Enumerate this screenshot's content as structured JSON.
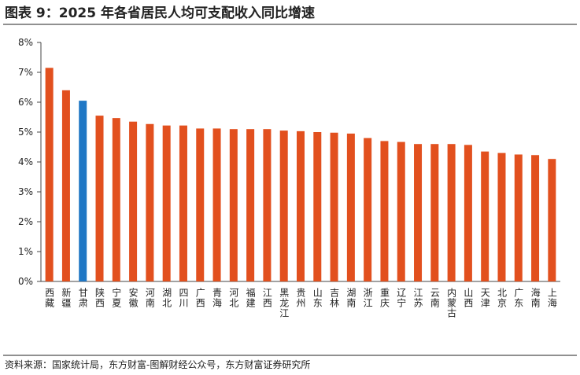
{
  "chart_data": {
    "type": "bar",
    "title": "图表 9：2025 年各省居民人均可支配收入同比增速",
    "source": "资料来源：国家统计局，东方财富-图解财经公众号，东方财富证券研究所",
    "categories": [
      "西藏",
      "新疆",
      "甘肃",
      "陕西",
      "宁夏",
      "安徽",
      "河南",
      "湖北",
      "四川",
      "广西",
      "青海",
      "河北",
      "福建",
      "江西",
      "黑龙江",
      "贵州",
      "山东",
      "吉林",
      "湖南",
      "浙江",
      "重庆",
      "辽宁",
      "江苏",
      "云南",
      "内蒙古",
      "山西",
      "天津",
      "北京",
      "广东",
      "海南",
      "上海"
    ],
    "values": [
      7.15,
      6.4,
      6.05,
      5.55,
      5.47,
      5.35,
      5.27,
      5.22,
      5.22,
      5.12,
      5.12,
      5.1,
      5.1,
      5.1,
      5.05,
      5.03,
      5.0,
      4.98,
      4.95,
      4.8,
      4.7,
      4.67,
      4.6,
      4.6,
      4.6,
      4.57,
      4.35,
      4.3,
      4.25,
      4.23,
      4.1
    ],
    "colors": [
      "#e2501e",
      "#e2501e",
      "#1f77c5",
      "#e2501e",
      "#e2501e",
      "#e2501e",
      "#e2501e",
      "#e2501e",
      "#e2501e",
      "#e2501e",
      "#e2501e",
      "#e2501e",
      "#e2501e",
      "#e2501e",
      "#e2501e",
      "#e2501e",
      "#e2501e",
      "#e2501e",
      "#e2501e",
      "#e2501e",
      "#e2501e",
      "#e2501e",
      "#e2501e",
      "#e2501e",
      "#e2501e",
      "#e2501e",
      "#e2501e",
      "#e2501e",
      "#e2501e",
      "#e2501e",
      "#e2501e"
    ],
    "ylim": [
      0,
      8
    ],
    "yticks": [
      {
        "value": 0,
        "label": "0%"
      },
      {
        "value": 1,
        "label": "1%"
      },
      {
        "value": 2,
        "label": "2%"
      },
      {
        "value": 3,
        "label": "3%"
      },
      {
        "value": 4,
        "label": "4%"
      },
      {
        "value": 5,
        "label": "5%"
      },
      {
        "value": 6,
        "label": "6%"
      },
      {
        "value": 7,
        "label": "7%"
      },
      {
        "value": 8,
        "label": "8%"
      }
    ],
    "grid": false
  }
}
